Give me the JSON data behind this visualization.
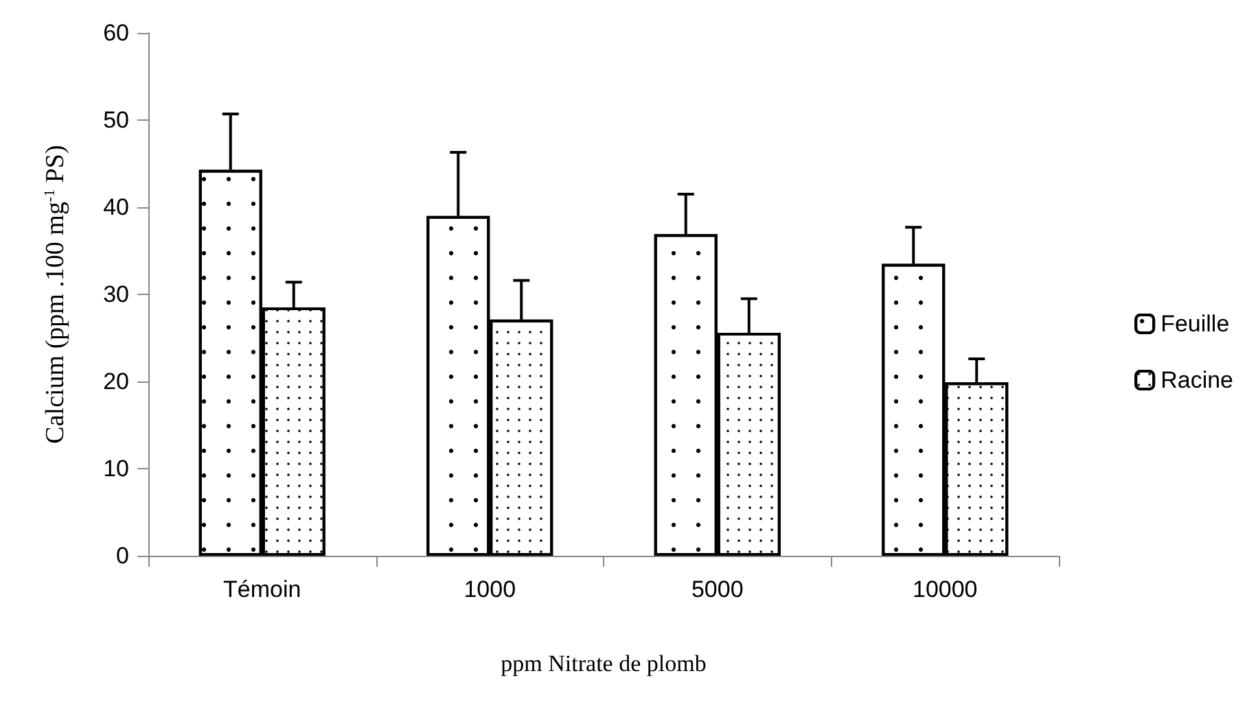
{
  "chart_data": {
    "type": "bar",
    "xlabel": "ppm Nitrate de plomb",
    "ylabel": "Calcium (ppm .100 mg$^{-1}$ PS)",
    "categories": [
      "Témoin",
      "1000",
      "5000",
      "10000"
    ],
    "series": [
      {
        "name": "Feuille",
        "color": "#ffffff",
        "values": [
          44.3,
          39.0,
          36.9,
          33.5
        ],
        "errors": [
          [
            44.3,
            50.7
          ],
          [
            39.0,
            46.3
          ],
          [
            36.9,
            41.5
          ],
          [
            33.5,
            37.7
          ]
        ]
      },
      {
        "name": "Racine",
        "color": "#ffffff",
        "values": [
          28.5,
          27.1,
          25.6,
          19.9
        ],
        "errors": [
          [
            28.5,
            31.4
          ],
          [
            27.1,
            31.6
          ],
          [
            25.6,
            29.5
          ],
          [
            19.9,
            22.6
          ]
        ]
      }
    ],
    "ylim": [
      0,
      60
    ],
    "yticks": [
      0,
      10,
      20,
      30,
      40,
      50,
      60
    ],
    "grid": false,
    "legend": "right"
  }
}
